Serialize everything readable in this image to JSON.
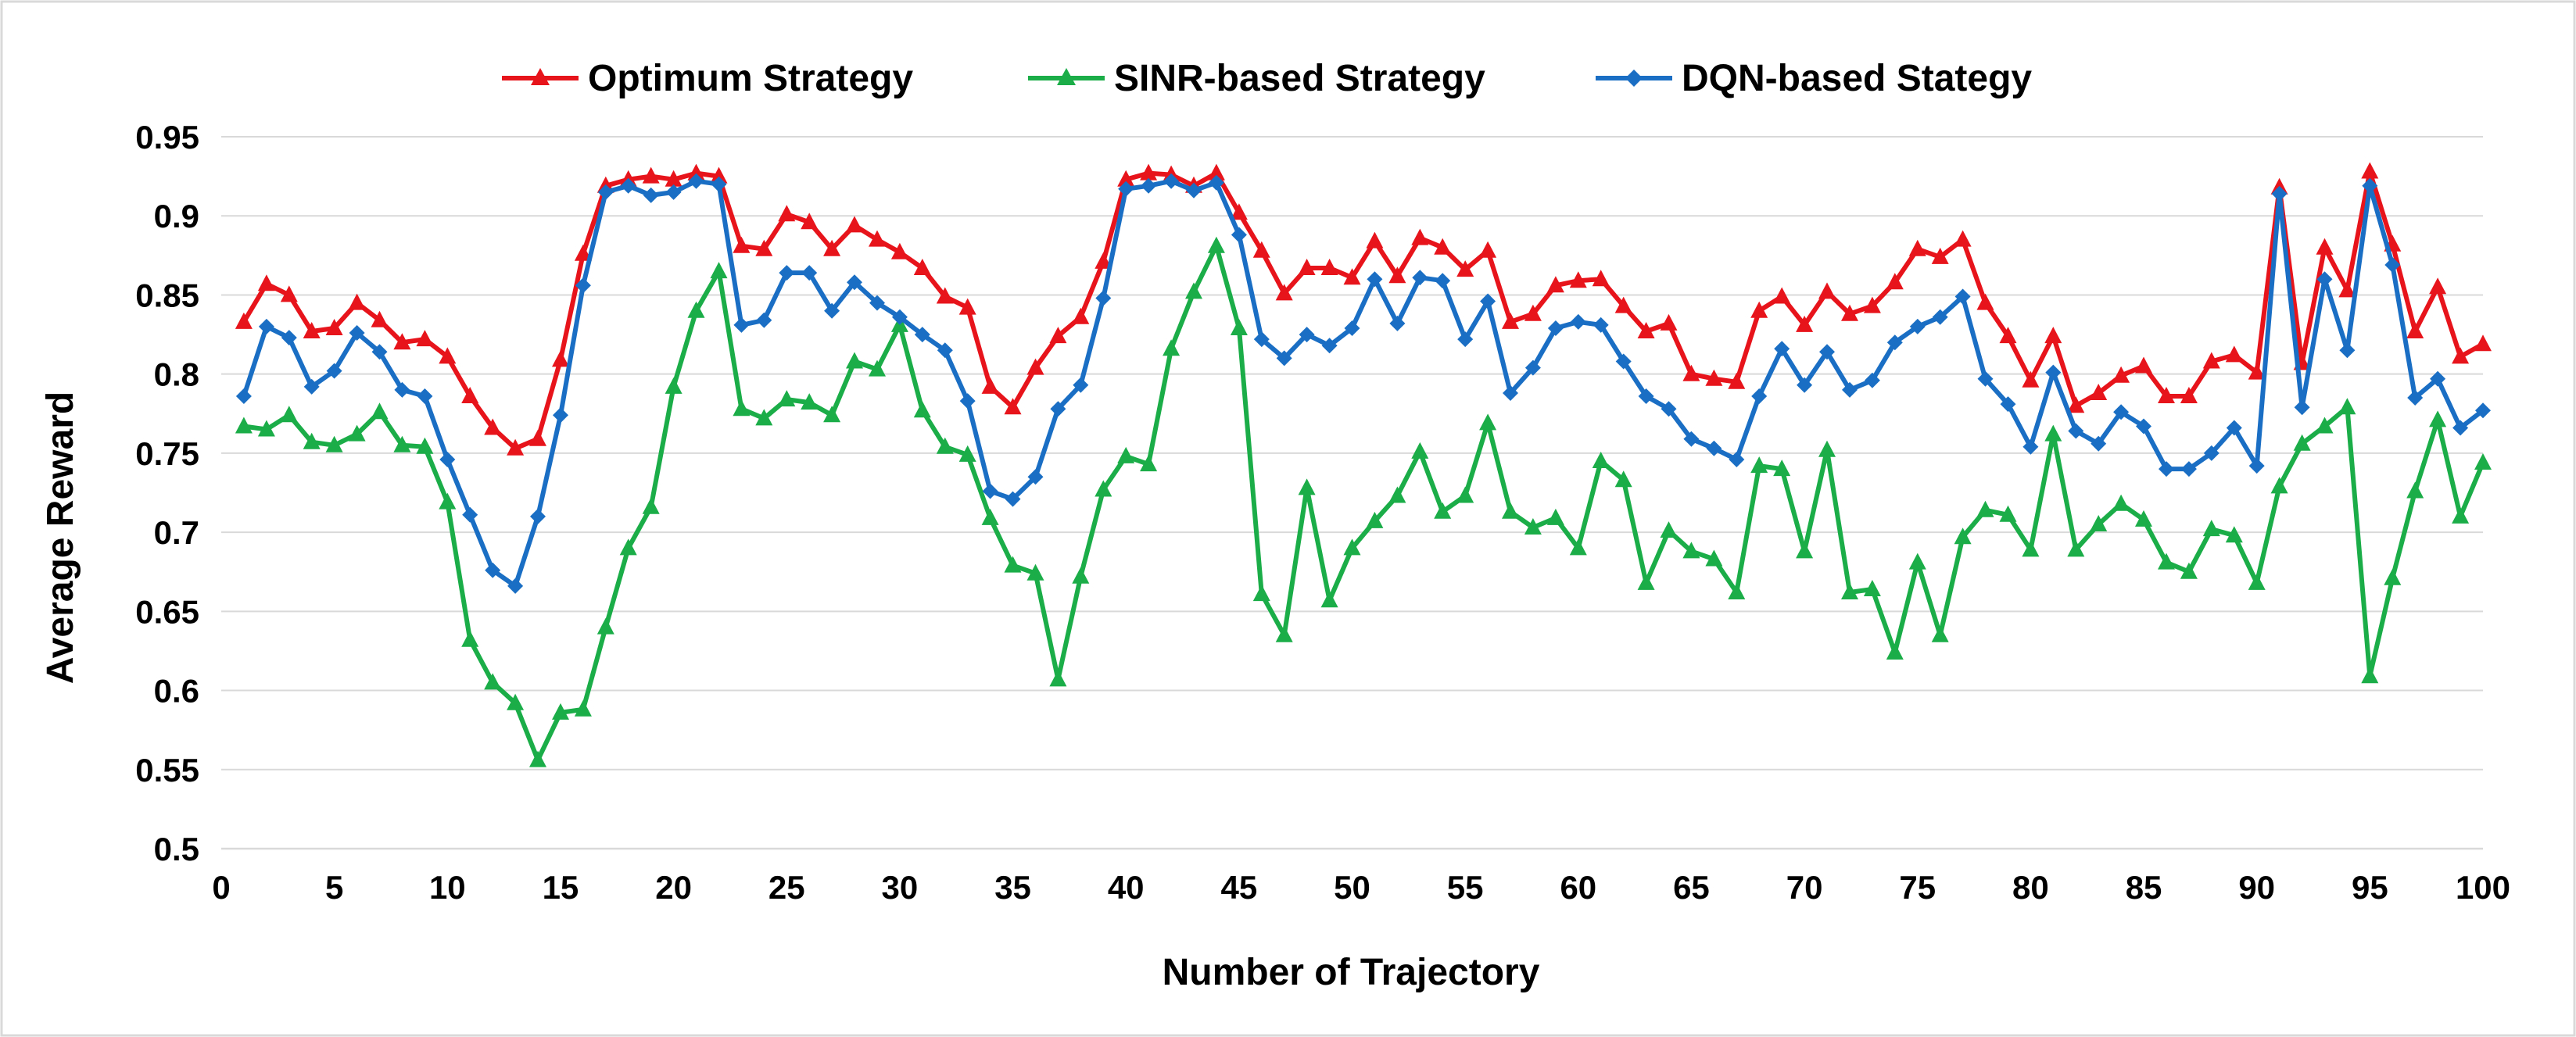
{
  "chart_data": {
    "type": "line",
    "title": "",
    "xlabel": "Number of Trajectory",
    "ylabel": "Average Reward",
    "xlim": [
      0,
      100
    ],
    "ylim": [
      0.5,
      0.95
    ],
    "x_ticks": [
      "0",
      "5",
      "10",
      "15",
      "20",
      "25",
      "30",
      "35",
      "40",
      "45",
      "50",
      "55",
      "60",
      "65",
      "70",
      "75",
      "80",
      "85",
      "90",
      "95",
      "100"
    ],
    "y_ticks": [
      "0.5",
      "0.55",
      "0.6",
      "0.65",
      "0.7",
      "0.75",
      "0.8",
      "0.85",
      "0.9",
      "0.95"
    ],
    "grid": true,
    "legend_position": "top",
    "x": [
      1,
      2,
      3,
      4,
      5,
      6,
      7,
      8,
      9,
      10,
      11,
      12,
      13,
      14,
      15,
      16,
      17,
      18,
      19,
      20,
      21,
      22,
      23,
      24,
      25,
      26,
      27,
      28,
      29,
      30,
      31,
      32,
      33,
      34,
      35,
      36,
      37,
      38,
      39,
      40,
      41,
      42,
      43,
      44,
      45,
      46,
      47,
      48,
      49,
      50,
      51,
      52,
      53,
      54,
      55,
      56,
      57,
      58,
      59,
      60,
      61,
      62,
      63,
      64,
      65,
      66,
      67,
      68,
      69,
      70,
      71,
      72,
      73,
      74,
      75,
      76,
      77,
      78,
      79,
      80,
      81,
      82,
      83,
      84,
      85,
      86,
      87,
      88,
      89,
      90,
      91,
      92,
      93,
      94,
      95,
      96,
      97,
      98,
      99,
      100
    ],
    "series": [
      {
        "name": "Optimum Strategy",
        "color": "#e8141c",
        "marker": "triangle",
        "values": [
          0.833,
          0.857,
          0.85,
          0.827,
          0.829,
          0.845,
          0.834,
          0.82,
          0.822,
          0.811,
          0.786,
          0.766,
          0.753,
          0.759,
          0.809,
          0.876,
          0.919,
          0.923,
          0.925,
          0.923,
          0.927,
          0.925,
          0.881,
          0.879,
          0.901,
          0.896,
          0.879,
          0.894,
          0.885,
          0.877,
          0.867,
          0.849,
          0.842,
          0.792,
          0.779,
          0.804,
          0.824,
          0.836,
          0.871,
          0.923,
          0.927,
          0.926,
          0.919,
          0.927,
          0.902,
          0.878,
          0.851,
          0.867,
          0.867,
          0.861,
          0.884,
          0.862,
          0.886,
          0.88,
          0.866,
          0.878,
          0.833,
          0.838,
          0.856,
          0.859,
          0.86,
          0.843,
          0.827,
          0.832,
          0.8,
          0.797,
          0.795,
          0.84,
          0.849,
          0.831,
          0.852,
          0.838,
          0.843,
          0.858,
          0.879,
          0.874,
          0.885,
          0.845,
          0.824,
          0.796,
          0.824,
          0.78,
          0.788,
          0.799,
          0.805,
          0.786,
          0.786,
          0.808,
          0.812,
          0.801,
          0.918,
          0.807,
          0.88,
          0.853,
          0.928,
          0.882,
          0.827,
          0.855,
          0.811,
          0.819
        ]
      },
      {
        "name": "SINR-based Strategy",
        "color": "#1aad48",
        "marker": "triangle",
        "values": [
          0.767,
          0.765,
          0.774,
          0.757,
          0.755,
          0.762,
          0.776,
          0.755,
          0.754,
          0.719,
          0.632,
          0.605,
          0.592,
          0.556,
          0.586,
          0.588,
          0.64,
          0.69,
          0.716,
          0.792,
          0.84,
          0.865,
          0.778,
          0.772,
          0.784,
          0.782,
          0.774,
          0.808,
          0.803,
          0.831,
          0.777,
          0.754,
          0.749,
          0.709,
          0.679,
          0.674,
          0.607,
          0.672,
          0.727,
          0.748,
          0.743,
          0.816,
          0.852,
          0.881,
          0.829,
          0.661,
          0.635,
          0.728,
          0.657,
          0.69,
          0.707,
          0.723,
          0.751,
          0.713,
          0.723,
          0.769,
          0.713,
          0.703,
          0.709,
          0.69,
          0.745,
          0.733,
          0.668,
          0.701,
          0.688,
          0.683,
          0.662,
          0.742,
          0.74,
          0.688,
          0.752,
          0.662,
          0.664,
          0.624,
          0.681,
          0.635,
          0.697,
          0.714,
          0.711,
          0.689,
          0.762,
          0.689,
          0.705,
          0.718,
          0.708,
          0.681,
          0.675,
          0.702,
          0.698,
          0.668,
          0.729,
          0.756,
          0.767,
          0.779,
          0.609,
          0.671,
          0.726,
          0.771,
          0.71,
          0.744
        ]
      },
      {
        "name": "DQN-based Stategy",
        "color": "#1a6fc4",
        "marker": "diamond",
        "values": [
          0.786,
          0.83,
          0.823,
          0.792,
          0.802,
          0.826,
          0.814,
          0.79,
          0.786,
          0.746,
          0.711,
          0.676,
          0.666,
          0.71,
          0.774,
          0.856,
          0.915,
          0.919,
          0.913,
          0.915,
          0.922,
          0.92,
          0.831,
          0.834,
          0.864,
          0.864,
          0.84,
          0.858,
          0.845,
          0.836,
          0.825,
          0.815,
          0.783,
          0.726,
          0.721,
          0.735,
          0.778,
          0.793,
          0.848,
          0.917,
          0.919,
          0.922,
          0.916,
          0.921,
          0.888,
          0.822,
          0.81,
          0.825,
          0.818,
          0.829,
          0.86,
          0.832,
          0.861,
          0.859,
          0.822,
          0.846,
          0.788,
          0.804,
          0.829,
          0.833,
          0.831,
          0.808,
          0.786,
          0.778,
          0.759,
          0.753,
          0.746,
          0.786,
          0.816,
          0.793,
          0.814,
          0.79,
          0.796,
          0.82,
          0.83,
          0.836,
          0.849,
          0.797,
          0.781,
          0.754,
          0.801,
          0.764,
          0.756,
          0.776,
          0.767,
          0.74,
          0.74,
          0.75,
          0.766,
          0.742,
          0.914,
          0.779,
          0.86,
          0.815,
          0.919,
          0.869,
          0.785,
          0.797,
          0.766,
          0.777
        ]
      }
    ]
  }
}
